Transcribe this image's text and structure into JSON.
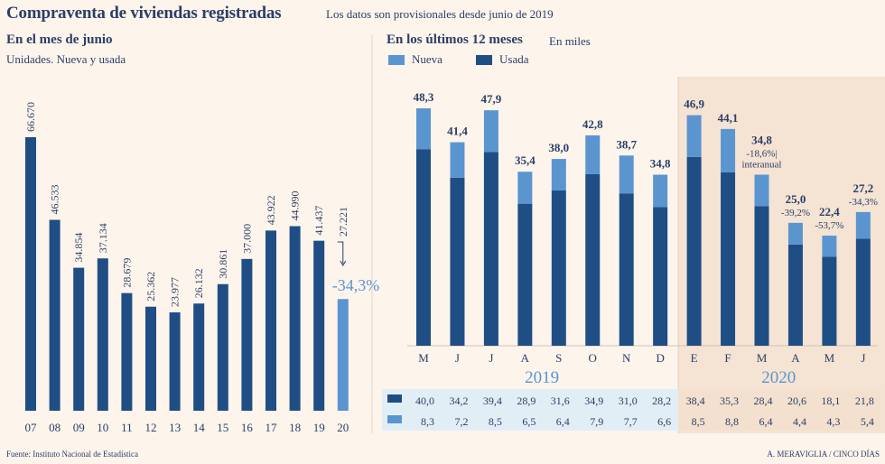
{
  "header": {
    "title": "Compraventa de viviendas registradas",
    "subtitle": "Los datos son provisionales desde junio de 2019"
  },
  "colors": {
    "nueva": "#5b95d0",
    "usada": "#1f4e85",
    "background": "#fdf4ec",
    "panel_2020": "#f5e3d3",
    "table_2019": "#e2eef6",
    "text": "#2a3f66"
  },
  "footer": {
    "source": "Fuente: Instituto Nacional de Estadística",
    "credit": "A. MERAVIGLIA / CINCO DÍAS"
  },
  "chart_data": [
    {
      "type": "bar",
      "title": "En el mes de junio",
      "subtitle": "Unidades. Nueva y usada",
      "categories": [
        "07",
        "08",
        "09",
        "10",
        "11",
        "12",
        "13",
        "14",
        "15",
        "16",
        "17",
        "18",
        "19",
        "20"
      ],
      "values": [
        66670,
        46533,
        34854,
        37134,
        28679,
        25362,
        23977,
        26132,
        30861,
        37000,
        43922,
        44990,
        41437,
        27221
      ],
      "labels": [
        "66.670",
        "46.533",
        "34.854",
        "37.134",
        "28.679",
        "25.362",
        "23.977",
        "26.132",
        "30.861",
        "37.000",
        "43.922",
        "44.990",
        "41.437",
        "27.221"
      ],
      "highlight": {
        "category": "20",
        "annotation": "-34,3%"
      }
    },
    {
      "type": "bar",
      "stacked": true,
      "title": "En los últimos 12 meses",
      "unit": "En miles",
      "categories": [
        "M",
        "J",
        "J",
        "A",
        "S",
        "O",
        "N",
        "D",
        "E",
        "F",
        "M",
        "A",
        "M",
        "J"
      ],
      "years": [
        {
          "label": "2019",
          "span": 8
        },
        {
          "label": "2020",
          "span": 6
        }
      ],
      "totals": [
        "48,3",
        "41,4",
        "47,9",
        "35,4",
        "38,0",
        "42,8",
        "38,7",
        "34,8",
        "46,9",
        "44,1",
        "34,8",
        "25,0",
        "22,4",
        "27,2"
      ],
      "annotations": [
        "",
        "",
        "",
        "",
        "",
        "",
        "",
        "",
        "",
        "",
        "-18,6%|interanual",
        "-39,2%",
        "-53,7%",
        "-34,3%"
      ],
      "series": [
        {
          "name": "Usada",
          "values": [
            40.0,
            34.2,
            39.4,
            28.9,
            31.6,
            34.9,
            31.0,
            28.2,
            38.4,
            35.3,
            28.4,
            20.6,
            18.1,
            21.8
          ],
          "labels": [
            "40,0",
            "34,2",
            "39,4",
            "28,9",
            "31,6",
            "34,9",
            "31,0",
            "28,2",
            "38,4",
            "35,3",
            "28,4",
            "20,6",
            "18,1",
            "21,8"
          ]
        },
        {
          "name": "Nueva",
          "values": [
            8.3,
            7.2,
            8.5,
            6.5,
            6.4,
            7.9,
            7.7,
            6.6,
            8.5,
            8.8,
            6.4,
            4.4,
            4.3,
            5.4
          ],
          "labels": [
            "8,3",
            "7,2",
            "8,5",
            "6,5",
            "6,4",
            "7,9",
            "7,7",
            "6,6",
            "8,5",
            "8,8",
            "6,4",
            "4,4",
            "4,3",
            "5,4"
          ]
        }
      ]
    }
  ]
}
